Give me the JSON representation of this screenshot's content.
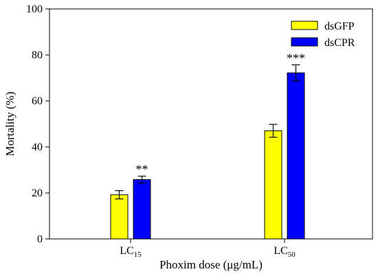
{
  "chart_data": {
    "type": "bar",
    "title": "",
    "xlabel": "Phoxim dose (μg/mL)",
    "ylabel": "Mortality (%)",
    "ylim": [
      0,
      100
    ],
    "yticks": [
      0,
      20,
      40,
      60,
      80,
      100
    ],
    "categories": [
      {
        "base": "LC",
        "sub": "15"
      },
      {
        "base": "LC",
        "sub": "50"
      }
    ],
    "series": [
      {
        "name": "dsGFP",
        "color": "#ffff00",
        "values": [
          19.2,
          47.0
        ],
        "errors": [
          1.8,
          2.8
        ],
        "annotations": [
          "",
          ""
        ]
      },
      {
        "name": "dsCPR",
        "color": "#0000ff",
        "values": [
          25.8,
          72.2
        ],
        "errors": [
          1.5,
          3.5
        ],
        "annotations": [
          "**",
          "***"
        ]
      }
    ],
    "legend_position": "top-right",
    "grid": false
  }
}
